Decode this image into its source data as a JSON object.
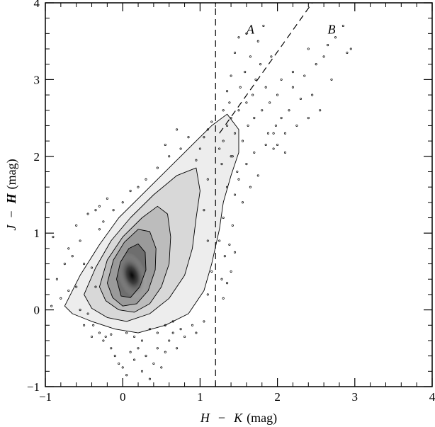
{
  "chart_data": {
    "type": "scatter",
    "xlabel": {
      "a": "H",
      "sep": "−",
      "b": "K",
      "unit": "(mag)"
    },
    "ylabel": {
      "a": "J",
      "sep": "−",
      "b": "H",
      "unit": "(mag)"
    },
    "xlim": [
      -1,
      4
    ],
    "ylim": [
      -1,
      4
    ],
    "xticks": [
      -1,
      0,
      1,
      2,
      3,
      4
    ],
    "yticks": [
      -1,
      0,
      1,
      2,
      3,
      4
    ],
    "xticklabels": [
      "−1",
      "0",
      "1",
      "2",
      "3",
      "4"
    ],
    "yticklabels": [
      "−1",
      "0",
      "1",
      "2",
      "3",
      "4"
    ],
    "vertical_cut": {
      "x": 1.2,
      "style": "dashed"
    },
    "diagonal_cut": {
      "x": [
        1.25,
        2.45
      ],
      "y": [
        2.3,
        4.0
      ],
      "style": "dashed"
    },
    "region_labels": [
      {
        "text": "A",
        "x": 1.65,
        "y": 3.6
      },
      {
        "text": "B",
        "x": 2.7,
        "y": 3.6
      }
    ],
    "density_peak": {
      "x": 0.12,
      "y": 0.45
    },
    "contours": [
      {
        "level": 1,
        "points": [
          [
            -0.75,
            0.05
          ],
          [
            -0.55,
            0.45
          ],
          [
            -0.3,
            0.85
          ],
          [
            -0.05,
            1.2
          ],
          [
            0.2,
            1.45
          ],
          [
            0.45,
            1.7
          ],
          [
            0.7,
            1.95
          ],
          [
            0.95,
            2.2
          ],
          [
            1.15,
            2.4
          ],
          [
            1.35,
            2.55
          ],
          [
            1.5,
            2.35
          ],
          [
            1.5,
            2.05
          ],
          [
            1.4,
            1.75
          ],
          [
            1.3,
            1.4
          ],
          [
            1.25,
            1.05
          ],
          [
            1.15,
            0.6
          ],
          [
            1.05,
            0.25
          ],
          [
            0.85,
            -0.05
          ],
          [
            0.55,
            -0.2
          ],
          [
            0.2,
            -0.3
          ],
          [
            -0.1,
            -0.25
          ],
          [
            -0.4,
            -0.15
          ],
          [
            -0.65,
            -0.05
          ]
        ]
      },
      {
        "level": 2,
        "points": [
          [
            -0.5,
            0.2
          ],
          [
            -0.35,
            0.55
          ],
          [
            -0.15,
            0.9
          ],
          [
            0.1,
            1.2
          ],
          [
            0.4,
            1.5
          ],
          [
            0.7,
            1.75
          ],
          [
            0.95,
            1.85
          ],
          [
            1.0,
            1.55
          ],
          [
            0.95,
            1.2
          ],
          [
            0.9,
            0.8
          ],
          [
            0.8,
            0.45
          ],
          [
            0.6,
            0.15
          ],
          [
            0.35,
            -0.05
          ],
          [
            0.05,
            -0.15
          ],
          [
            -0.2,
            -0.1
          ],
          [
            -0.4,
            0.02
          ]
        ]
      },
      {
        "level": 3,
        "points": [
          [
            -0.3,
            0.3
          ],
          [
            -0.2,
            0.65
          ],
          [
            0.0,
            0.95
          ],
          [
            0.25,
            1.2
          ],
          [
            0.45,
            1.35
          ],
          [
            0.58,
            1.25
          ],
          [
            0.62,
            0.95
          ],
          [
            0.6,
            0.6
          ],
          [
            0.5,
            0.3
          ],
          [
            0.35,
            0.08
          ],
          [
            0.15,
            -0.03
          ],
          [
            -0.05,
            0.0
          ],
          [
            -0.22,
            0.12
          ]
        ]
      },
      {
        "level": 4,
        "points": [
          [
            -0.2,
            0.35
          ],
          [
            -0.12,
            0.65
          ],
          [
            0.02,
            0.88
          ],
          [
            0.2,
            1.05
          ],
          [
            0.35,
            1.02
          ],
          [
            0.43,
            0.8
          ],
          [
            0.42,
            0.52
          ],
          [
            0.33,
            0.25
          ],
          [
            0.18,
            0.08
          ],
          [
            0.0,
            0.05
          ],
          [
            -0.13,
            0.16
          ]
        ]
      },
      {
        "level": 5,
        "points": [
          [
            -0.08,
            0.4
          ],
          [
            -0.03,
            0.62
          ],
          [
            0.08,
            0.8
          ],
          [
            0.2,
            0.86
          ],
          [
            0.29,
            0.75
          ],
          [
            0.3,
            0.52
          ],
          [
            0.22,
            0.3
          ],
          [
            0.1,
            0.16
          ],
          [
            -0.02,
            0.18
          ]
        ]
      }
    ],
    "points": [
      [
        -0.9,
        0.95
      ],
      [
        -0.85,
        0.4
      ],
      [
        -0.8,
        0.15
      ],
      [
        -0.92,
        0.05
      ],
      [
        -0.75,
        0.6
      ],
      [
        -0.7,
        0.8
      ],
      [
        -0.6,
        1.1
      ],
      [
        -0.55,
        0.0
      ],
      [
        -0.5,
        -0.2
      ],
      [
        -0.45,
        1.25
      ],
      [
        -0.4,
        -0.35
      ],
      [
        -0.35,
        1.3
      ],
      [
        -0.3,
        1.35
      ],
      [
        -0.25,
        -0.4
      ],
      [
        -0.2,
        1.45
      ],
      [
        -0.15,
        -0.5
      ],
      [
        -0.1,
        -0.6
      ],
      [
        -0.05,
        -0.7
      ],
      [
        0.0,
        -0.75
      ],
      [
        0.05,
        -0.85
      ],
      [
        0.1,
        -0.55
      ],
      [
        0.15,
        -0.65
      ],
      [
        0.2,
        -0.5
      ],
      [
        0.25,
        -0.8
      ],
      [
        0.3,
        -0.6
      ],
      [
        0.35,
        -0.9
      ],
      [
        0.4,
        -0.7
      ],
      [
        0.45,
        -0.5
      ],
      [
        0.5,
        -0.75
      ],
      [
        0.55,
        -0.55
      ],
      [
        0.6,
        -0.4
      ],
      [
        0.65,
        -0.3
      ],
      [
        0.7,
        -0.5
      ],
      [
        0.75,
        -0.25
      ],
      [
        0.8,
        -0.35
      ],
      [
        0.9,
        -0.2
      ],
      [
        0.95,
        -0.3
      ],
      [
        1.05,
        -0.15
      ],
      [
        -0.65,
        0.7
      ],
      [
        -0.6,
        0.3
      ],
      [
        -0.55,
        0.9
      ],
      [
        -0.5,
        0.6
      ],
      [
        -0.7,
        0.25
      ],
      [
        -0.45,
        -0.05
      ],
      [
        -0.38,
        -0.2
      ],
      [
        -0.3,
        -0.3
      ],
      [
        -0.22,
        -0.35
      ],
      [
        -0.15,
        -0.32
      ],
      [
        0.95,
        1.95
      ],
      [
        1.0,
        2.1
      ],
      [
        1.05,
        2.25
      ],
      [
        1.1,
        2.35
      ],
      [
        1.15,
        2.45
      ],
      [
        1.1,
        1.7
      ],
      [
        1.05,
        1.3
      ],
      [
        1.1,
        0.9
      ],
      [
        1.15,
        0.5
      ],
      [
        1.1,
        0.2
      ],
      [
        1.25,
        2.1
      ],
      [
        1.3,
        2.2
      ],
      [
        1.28,
        1.9
      ],
      [
        1.35,
        1.6
      ],
      [
        1.3,
        1.2
      ],
      [
        1.25,
        0.9
      ],
      [
        1.32,
        0.7
      ],
      [
        1.28,
        0.4
      ],
      [
        1.35,
        2.4
      ],
      [
        1.4,
        2.5
      ],
      [
        1.38,
        2.7
      ],
      [
        1.45,
        2.3
      ],
      [
        1.42,
        2.0
      ],
      [
        1.48,
        1.8
      ],
      [
        1.5,
        2.6
      ],
      [
        1.52,
        2.9
      ],
      [
        1.55,
        2.2
      ],
      [
        1.6,
        2.7
      ],
      [
        1.58,
        3.1
      ],
      [
        1.62,
        2.4
      ],
      [
        1.65,
        3.3
      ],
      [
        1.68,
        2.8
      ],
      [
        1.7,
        2.5
      ],
      [
        1.72,
        3.0
      ],
      [
        1.75,
        3.5
      ],
      [
        1.78,
        3.2
      ],
      [
        1.8,
        2.6
      ],
      [
        1.82,
        3.7
      ],
      [
        1.85,
        2.9
      ],
      [
        1.88,
        2.3
      ],
      [
        1.9,
        2.7
      ],
      [
        1.92,
        3.3
      ],
      [
        1.95,
        2.1
      ],
      [
        1.98,
        2.4
      ],
      [
        2.0,
        2.8
      ],
      [
        2.05,
        2.5
      ],
      [
        2.1,
        2.3
      ],
      [
        2.15,
        2.6
      ],
      [
        2.2,
        2.9
      ],
      [
        2.25,
        2.4
      ],
      [
        2.3,
        2.75
      ],
      [
        2.35,
        3.05
      ],
      [
        2.4,
        2.5
      ],
      [
        2.45,
        2.8
      ],
      [
        2.5,
        3.2
      ],
      [
        2.55,
        2.6
      ],
      [
        2.6,
        3.3
      ],
      [
        2.65,
        3.45
      ],
      [
        2.7,
        3.0
      ],
      [
        2.75,
        3.55
      ],
      [
        2.85,
        3.7
      ],
      [
        2.9,
        3.35
      ],
      [
        2.95,
        3.4
      ],
      [
        2.4,
        3.4
      ],
      [
        2.2,
        3.1
      ],
      [
        2.05,
        3.0
      ],
      [
        1.4,
        2.0
      ],
      [
        1.45,
        1.5
      ],
      [
        1.5,
        1.7
      ],
      [
        1.55,
        1.4
      ],
      [
        1.6,
        1.9
      ],
      [
        1.65,
        1.6
      ],
      [
        1.7,
        2.05
      ],
      [
        1.75,
        1.75
      ],
      [
        1.85,
        2.15
      ],
      [
        1.95,
        2.3
      ],
      [
        2.0,
        2.15
      ],
      [
        2.1,
        2.05
      ],
      [
        1.3,
        2.6
      ],
      [
        1.35,
        2.85
      ],
      [
        1.4,
        3.05
      ],
      [
        1.45,
        3.35
      ],
      [
        1.5,
        3.55
      ],
      [
        1.6,
        3.6
      ],
      [
        1.42,
        1.1
      ],
      [
        1.38,
        0.85
      ],
      [
        1.45,
        0.75
      ],
      [
        1.4,
        0.5
      ],
      [
        1.35,
        0.35
      ],
      [
        1.3,
        0.15
      ],
      [
        0.05,
        -0.3
      ],
      [
        0.15,
        -0.35
      ],
      [
        0.25,
        -0.4
      ],
      [
        0.35,
        -0.25
      ],
      [
        0.45,
        -0.3
      ],
      [
        0.55,
        -0.2
      ],
      [
        0.65,
        -0.15
      ],
      [
        -0.35,
        0.3
      ],
      [
        -0.4,
        0.55
      ],
      [
        -0.3,
        1.05
      ],
      [
        -0.25,
        1.15
      ],
      [
        -0.12,
        1.3
      ],
      [
        0.0,
        1.4
      ],
      [
        0.1,
        1.55
      ],
      [
        0.2,
        1.6
      ],
      [
        0.3,
        1.7
      ],
      [
        0.45,
        1.85
      ],
      [
        0.6,
        2.0
      ],
      [
        0.75,
        2.1
      ],
      [
        0.85,
        2.25
      ],
      [
        0.7,
        2.35
      ],
      [
        0.55,
        2.15
      ]
    ]
  }
}
